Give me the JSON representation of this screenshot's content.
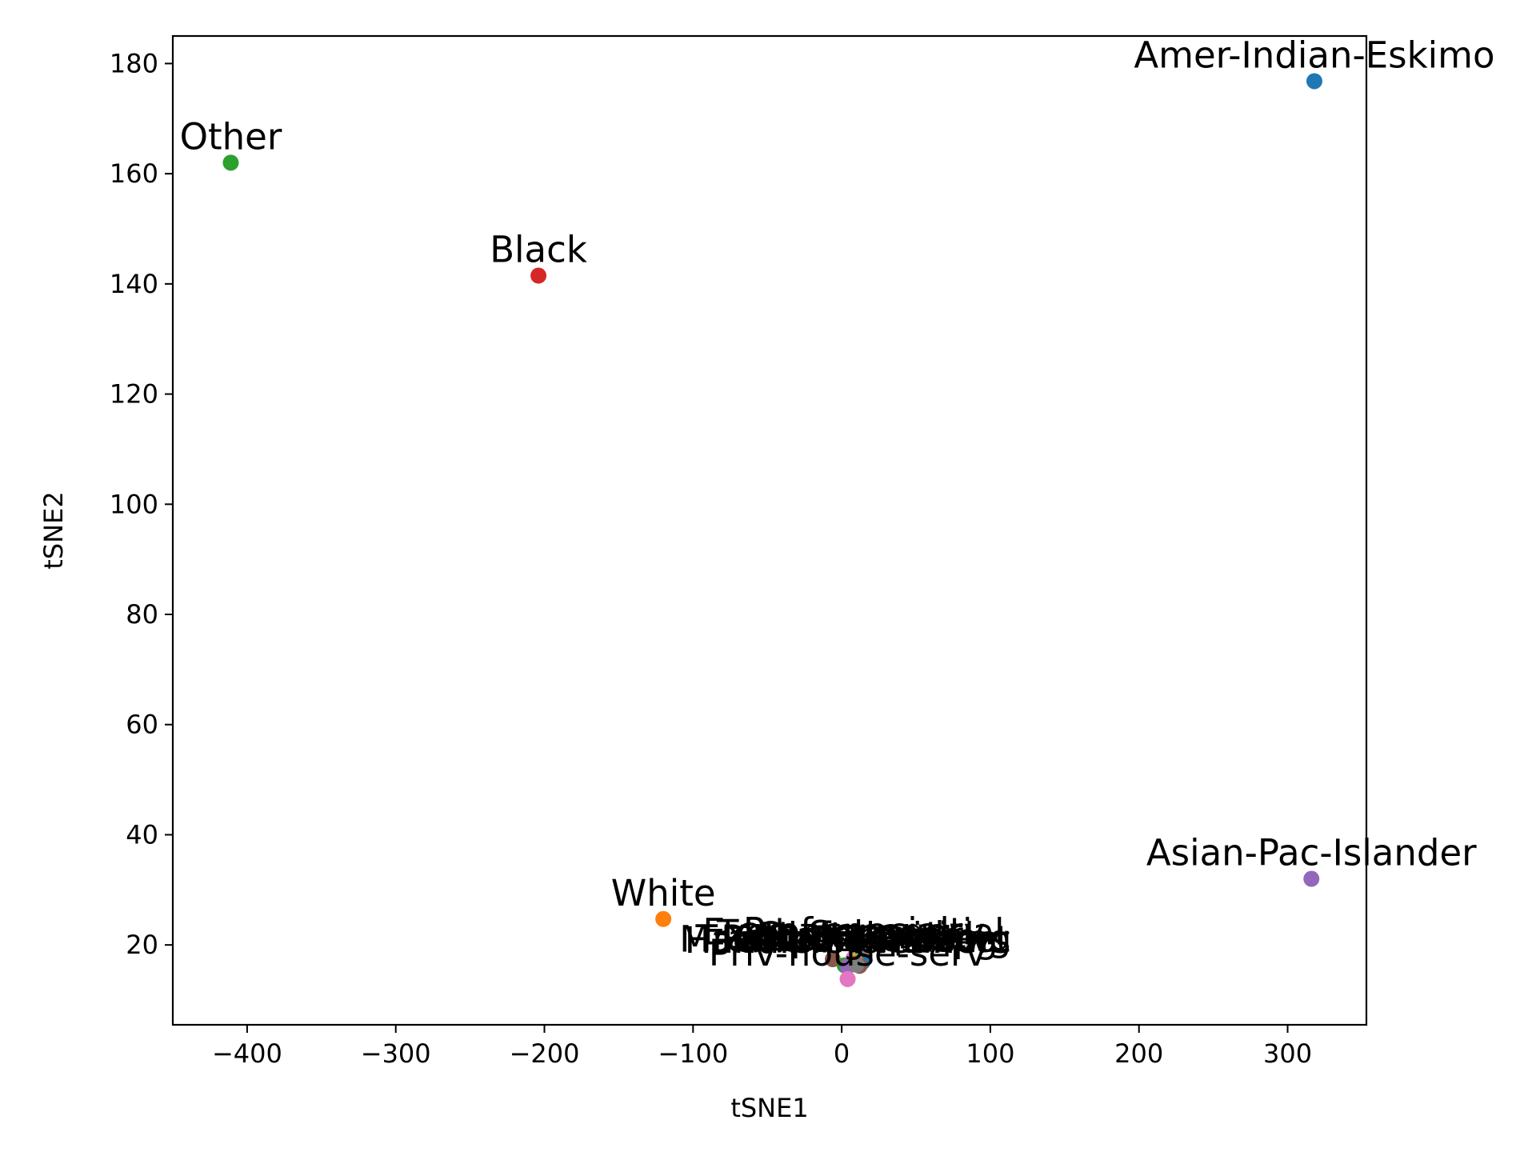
{
  "chart_data": {
    "type": "scatter",
    "title": "",
    "xlabel": "tSNE1",
    "ylabel": "tSNE2",
    "xlim": [
      -450,
      353
    ],
    "ylim": [
      5.5,
      185
    ],
    "xticks": [
      -400,
      -300,
      -200,
      -100,
      0,
      100,
      200,
      300
    ],
    "yticks": [
      20,
      40,
      60,
      80,
      100,
      120,
      140,
      160,
      180
    ],
    "grid": false,
    "legend": "none",
    "points": [
      {
        "label": "Amer-Indian-Eskimo",
        "x": 318,
        "y": 176.8,
        "color": "#1f77b4"
      },
      {
        "label": "Other",
        "x": -411,
        "y": 162,
        "color": "#2ca02c"
      },
      {
        "label": "Black",
        "x": -204,
        "y": 141.5,
        "color": "#d62728"
      },
      {
        "label": "Asian-Pac-Islander",
        "x": 316,
        "y": 32,
        "color": "#9467bd"
      },
      {
        "label": "White",
        "x": -120,
        "y": 24.7,
        "color": "#ff7f0e"
      },
      {
        "label": "Tech-support",
        "x": -6,
        "y": 17.4,
        "color": "#8c564b"
      },
      {
        "label": "Exec-managerial",
        "x": 8,
        "y": 17.6,
        "color": "#e377c2"
      },
      {
        "label": "Prof-specialty",
        "x": 15,
        "y": 17.8,
        "color": "#7f7f7f"
      },
      {
        "label": "Sales",
        "x": 10,
        "y": 17.2,
        "color": "#bcbd22"
      },
      {
        "label": "Craft-repair",
        "x": 12,
        "y": 17.0,
        "color": "#17becf"
      },
      {
        "label": "Adm-clerical",
        "x": 14,
        "y": 16.9,
        "color": "#1f77b4"
      },
      {
        "label": "Other-service",
        "x": 10,
        "y": 16.7,
        "color": "#ff7f0e"
      },
      {
        "label": "Machine-op-inspct",
        "x": 2,
        "y": 16.3,
        "color": "#2ca02c"
      },
      {
        "label": "Transport-moving",
        "x": 8,
        "y": 16.5,
        "color": "#d62728"
      },
      {
        "label": "Handlers-cleaners",
        "x": 4,
        "y": 16.1,
        "color": "#9467bd"
      },
      {
        "label": "Farming-fishing",
        "x": 12,
        "y": 16.2,
        "color": "#8c564b"
      },
      {
        "label": "Protective-serv",
        "x": 10,
        "y": 16.4,
        "color": "#7f7f7f"
      },
      {
        "label": "Priv-house-serv",
        "x": 4,
        "y": 13.8,
        "color": "#e377c2"
      }
    ]
  }
}
